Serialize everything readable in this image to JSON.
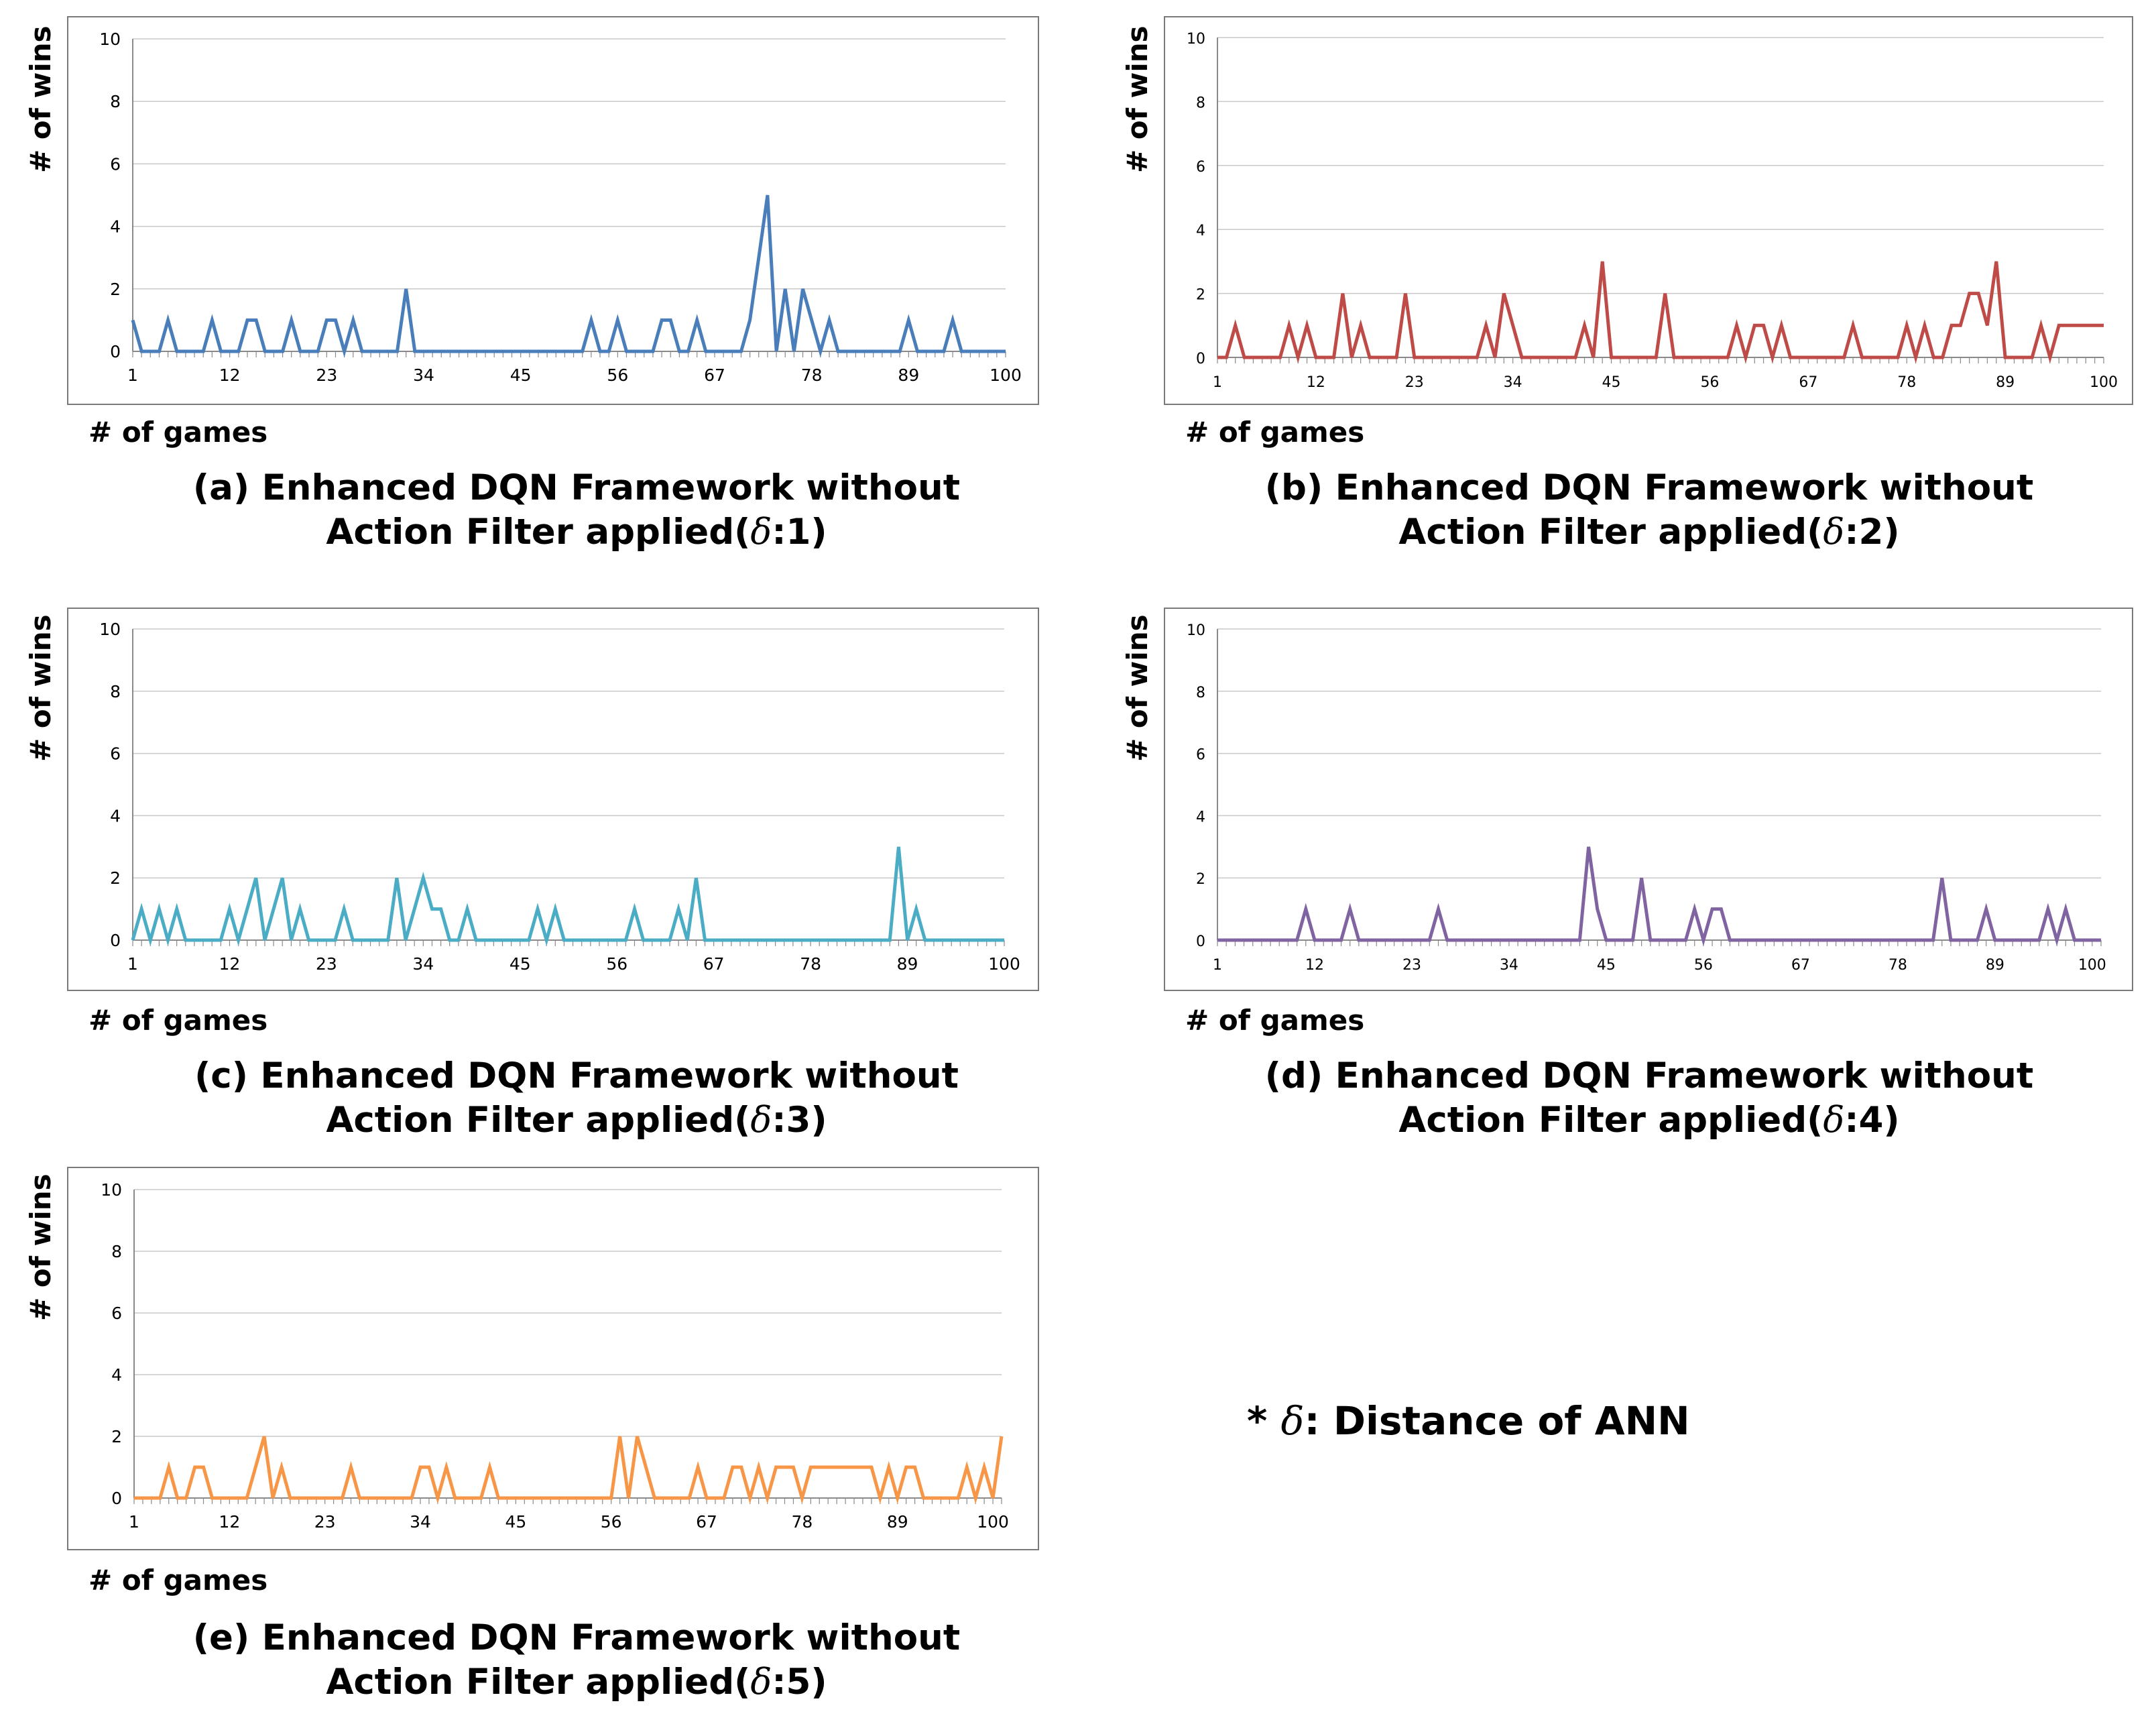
{
  "axis_labels": {
    "ylabel": "# of wins",
    "xlabel": "# of games"
  },
  "note": {
    "prefix": "* ",
    "symbol": "δ",
    "text": ": Distance of ANN"
  },
  "chart_data": [
    {
      "type": "line",
      "id": "a",
      "caption_line1": "(a) Enhanced DQN Framework without",
      "caption_line2_prefix": "Action Filter applied(",
      "caption_symbol": "δ",
      "caption_line2_suffix": ":1)",
      "xlabel": "# of games",
      "ylabel": "# of wins",
      "ylim": [
        0,
        10
      ],
      "yticks": [
        "0",
        "2",
        "4",
        "6",
        "8",
        "10"
      ],
      "xticks": [
        "1",
        "12",
        "23",
        "34",
        "45",
        "56",
        "67",
        "78",
        "89",
        "100"
      ],
      "color": "#4a7ebb",
      "values": [
        1,
        0,
        0,
        0,
        1,
        0,
        0,
        0,
        0,
        1,
        0,
        0,
        0,
        1,
        1,
        0,
        0,
        0,
        1,
        0,
        0,
        0,
        1,
        1,
        0,
        1,
        0,
        0,
        0,
        0,
        0,
        2,
        0,
        0,
        0,
        0,
        0,
        0,
        0,
        0,
        0,
        0,
        0,
        0,
        0,
        0,
        0,
        0,
        0,
        0,
        0,
        0,
        1,
        0,
        0,
        1,
        0,
        0,
        0,
        0,
        1,
        1,
        0,
        0,
        1,
        0,
        0,
        0,
        0,
        0,
        1,
        3,
        5,
        0,
        2,
        0,
        2,
        1,
        0,
        1,
        0,
        0,
        0,
        0,
        0,
        0,
        0,
        0,
        1,
        0,
        0,
        0,
        0,
        1,
        0,
        0,
        0,
        0,
        0,
        0
      ]
    },
    {
      "type": "line",
      "id": "b",
      "caption_line1": "(b) Enhanced DQN Framework without",
      "caption_line2_prefix": "Action Filter applied(",
      "caption_symbol": "δ",
      "caption_line2_suffix": ":2)",
      "xlabel": "# of games",
      "ylabel": "# of wins",
      "ylim": [
        0,
        10
      ],
      "yticks": [
        "0",
        "2",
        "4",
        "6",
        "8",
        "10"
      ],
      "xticks": [
        "1",
        "12",
        "23",
        "34",
        "45",
        "56",
        "67",
        "78",
        "89",
        "100"
      ],
      "color": "#be4b48",
      "values": [
        0,
        0,
        1,
        0,
        0,
        0,
        0,
        0,
        1,
        0,
        1,
        0,
        0,
        0,
        2,
        0,
        1,
        0,
        0,
        0,
        0,
        2,
        0,
        0,
        0,
        0,
        0,
        0,
        0,
        0,
        1,
        0,
        2,
        1,
        0,
        0,
        0,
        0,
        0,
        0,
        0,
        1,
        0,
        3,
        0,
        0,
        0,
        0,
        0,
        0,
        2,
        0,
        0,
        0,
        0,
        0,
        0,
        0,
        1,
        0,
        1,
        1,
        0,
        1,
        0,
        0,
        0,
        0,
        0,
        0,
        0,
        1,
        0,
        0,
        0,
        0,
        0,
        1,
        0,
        1,
        0,
        0,
        1,
        1,
        2,
        2,
        1,
        3,
        0,
        0,
        0,
        0,
        1,
        0,
        1,
        1,
        1,
        1,
        1,
        1
      ]
    },
    {
      "type": "line",
      "id": "c",
      "caption_line1": "(c) Enhanced DQN Framework without",
      "caption_line2_prefix": "Action Filter applied(",
      "caption_symbol": "δ",
      "caption_line2_suffix": ":3)",
      "xlabel": "# of games",
      "ylabel": "# of wins",
      "ylim": [
        0,
        10
      ],
      "yticks": [
        "0",
        "2",
        "4",
        "6",
        "8",
        "10"
      ],
      "xticks": [
        "1",
        "12",
        "23",
        "34",
        "45",
        "56",
        "67",
        "78",
        "89",
        "100"
      ],
      "color": "#4bacc6",
      "values": [
        0,
        1,
        0,
        1,
        0,
        1,
        0,
        0,
        0,
        0,
        0,
        1,
        0,
        1,
        2,
        0,
        1,
        2,
        0,
        1,
        0,
        0,
        0,
        0,
        1,
        0,
        0,
        0,
        0,
        0,
        2,
        0,
        1,
        2,
        1,
        1,
        0,
        0,
        1,
        0,
        0,
        0,
        0,
        0,
        0,
        0,
        1,
        0,
        1,
        0,
        0,
        0,
        0,
        0,
        0,
        0,
        0,
        1,
        0,
        0,
        0,
        0,
        1,
        0,
        2,
        0,
        0,
        0,
        0,
        0,
        0,
        0,
        0,
        0,
        0,
        0,
        0,
        0,
        0,
        0,
        0,
        0,
        0,
        0,
        0,
        0,
        0,
        3,
        0,
        1,
        0,
        0,
        0,
        0,
        0,
        0,
        0,
        0,
        0,
        0
      ]
    },
    {
      "type": "line",
      "id": "d",
      "caption_line1": "(d) Enhanced DQN Framework without",
      "caption_line2_prefix": "Action Filter applied(",
      "caption_symbol": "δ",
      "caption_line2_suffix": ":4)",
      "xlabel": "# of games",
      "ylabel": "# of wins",
      "ylim": [
        0,
        10
      ],
      "yticks": [
        "0",
        "2",
        "4",
        "6",
        "8",
        "10"
      ],
      "xticks": [
        "1",
        "12",
        "23",
        "34",
        "45",
        "56",
        "67",
        "78",
        "89",
        "100"
      ],
      "color": "#8064a2",
      "values": [
        0,
        0,
        0,
        0,
        0,
        0,
        0,
        0,
        0,
        0,
        1,
        0,
        0,
        0,
        0,
        1,
        0,
        0,
        0,
        0,
        0,
        0,
        0,
        0,
        0,
        1,
        0,
        0,
        0,
        0,
        0,
        0,
        0,
        0,
        0,
        0,
        0,
        0,
        0,
        0,
        0,
        0,
        3,
        1,
        0,
        0,
        0,
        0,
        2,
        0,
        0,
        0,
        0,
        0,
        1,
        0,
        1,
        1,
        0,
        0,
        0,
        0,
        0,
        0,
        0,
        0,
        0,
        0,
        0,
        0,
        0,
        0,
        0,
        0,
        0,
        0,
        0,
        0,
        0,
        0,
        0,
        0,
        2,
        0,
        0,
        0,
        0,
        1,
        0,
        0,
        0,
        0,
        0,
        0,
        1,
        0,
        1,
        0,
        0,
        0,
        0
      ]
    },
    {
      "type": "line",
      "id": "e",
      "caption_line1": "(e) Enhanced DQN Framework without",
      "caption_line2_prefix": "Action Filter applied(",
      "caption_symbol": "δ",
      "caption_line2_suffix": ":5)",
      "xlabel": "# of games",
      "ylabel": "# of wins",
      "ylim": [
        0,
        10
      ],
      "yticks": [
        "0",
        "2",
        "4",
        "6",
        "8",
        "10"
      ],
      "xticks": [
        "1",
        "12",
        "23",
        "34",
        "45",
        "56",
        "67",
        "78",
        "89",
        "100"
      ],
      "color": "#f79646",
      "values": [
        0,
        0,
        0,
        0,
        1,
        0,
        0,
        1,
        1,
        0,
        0,
        0,
        0,
        0,
        1,
        2,
        0,
        1,
        0,
        0,
        0,
        0,
        0,
        0,
        0,
        1,
        0,
        0,
        0,
        0,
        0,
        0,
        0,
        1,
        1,
        0,
        1,
        0,
        0,
        0,
        0,
        1,
        0,
        0,
        0,
        0,
        0,
        0,
        0,
        0,
        0,
        0,
        0,
        0,
        0,
        0,
        2,
        0,
        2,
        1,
        0,
        0,
        0,
        0,
        0,
        1,
        0,
        0,
        0,
        1,
        1,
        0,
        1,
        0,
        1,
        1,
        1,
        0,
        1,
        1,
        1,
        1,
        1,
        1,
        1,
        1,
        0,
        1,
        0,
        1,
        1,
        0,
        0,
        0,
        0,
        0,
        1,
        0,
        1,
        0,
        2
      ]
    }
  ]
}
